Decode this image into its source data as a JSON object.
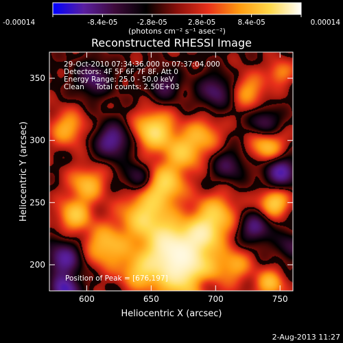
{
  "chart_data": {
    "type": "heatmap",
    "title": "Reconstructed RHESSI Image",
    "xlabel": "Heliocentric X (arcsec)",
    "ylabel": "Heliocentric Y (arcsec)",
    "xlim": [
      571,
      760
    ],
    "ylim": [
      179,
      371
    ],
    "x_ticks": [
      600,
      650,
      700,
      750
    ],
    "y_ticks": [
      200,
      250,
      300,
      350
    ],
    "colorbar": {
      "min": -0.00014,
      "max": 0.00014,
      "ticks": [
        "-0.00014",
        "-8.4e-05",
        "-2.8e-05",
        "2.8e-05",
        "8.4e-05",
        "0.00014"
      ],
      "label": "(photons cm⁻² s⁻¹ asec⁻²)",
      "colors": [
        "#0000ff",
        "#5a1fa0",
        "#3d0a3a",
        "#000000",
        "#8a0f0a",
        "#e8301a",
        "#ff9a10",
        "#ffd84a",
        "#ffffff"
      ]
    },
    "annotations": [
      "29-Oct-2010 07:34:36.000 to 07:37:04.000",
      "Detectors: 4F 5F 6F 7F 8F, Att 0",
      "Energy Range: 25.0 - 50.0 keV",
      "Clean     Total counts: 2.50E+03"
    ],
    "peak_label": "Position of Peak = [676,197]",
    "peak": [
      676,
      197
    ],
    "blobs": [
      {
        "x": 676,
        "y": 197,
        "w": 18,
        "v": 1.0
      },
      {
        "x": 665,
        "y": 215,
        "w": 14,
        "v": 0.75
      },
      {
        "x": 645,
        "y": 240,
        "w": 13,
        "v": 0.7
      },
      {
        "x": 660,
        "y": 265,
        "w": 11,
        "v": 0.7
      },
      {
        "x": 675,
        "y": 290,
        "w": 10,
        "v": 0.55
      },
      {
        "x": 652,
        "y": 308,
        "w": 11,
        "v": 0.8
      },
      {
        "x": 600,
        "y": 265,
        "w": 10,
        "v": 0.55
      },
      {
        "x": 590,
        "y": 240,
        "w": 9,
        "v": 0.6
      },
      {
        "x": 615,
        "y": 215,
        "w": 12,
        "v": 0.6
      },
      {
        "x": 640,
        "y": 195,
        "w": 10,
        "v": 0.5
      },
      {
        "x": 700,
        "y": 240,
        "w": 12,
        "v": 0.6
      },
      {
        "x": 690,
        "y": 225,
        "w": 9,
        "v": 0.55
      },
      {
        "x": 740,
        "y": 295,
        "w": 9,
        "v": 0.6
      },
      {
        "x": 745,
        "y": 250,
        "w": 8,
        "v": 0.7
      },
      {
        "x": 690,
        "y": 305,
        "w": 10,
        "v": 0.45
      },
      {
        "x": 725,
        "y": 340,
        "w": 10,
        "v": 0.45
      },
      {
        "x": 585,
        "y": 310,
        "w": 10,
        "v": 0.5
      },
      {
        "x": 715,
        "y": 200,
        "w": 9,
        "v": 0.4
      },
      {
        "x": 742,
        "y": 185,
        "w": 8,
        "v": 0.55
      },
      {
        "x": 750,
        "y": 355,
        "w": 7,
        "v": 0.4
      },
      {
        "x": 582,
        "y": 205,
        "w": 10,
        "v": -0.7
      },
      {
        "x": 620,
        "y": 300,
        "w": 10,
        "v": -0.7
      },
      {
        "x": 605,
        "y": 350,
        "w": 10,
        "v": -0.55
      },
      {
        "x": 640,
        "y": 270,
        "w": 8,
        "v": -0.5
      },
      {
        "x": 700,
        "y": 340,
        "w": 10,
        "v": -0.55
      },
      {
        "x": 710,
        "y": 280,
        "w": 9,
        "v": -0.45
      },
      {
        "x": 730,
        "y": 230,
        "w": 9,
        "v": -0.6
      },
      {
        "x": 750,
        "y": 275,
        "w": 9,
        "v": -0.75
      },
      {
        "x": 758,
        "y": 215,
        "w": 8,
        "v": -0.4
      },
      {
        "x": 690,
        "y": 185,
        "w": 7,
        "v": -0.35
      },
      {
        "x": 660,
        "y": 345,
        "w": 9,
        "v": -0.45
      },
      {
        "x": 583,
        "y": 180,
        "w": 8,
        "v": -0.8
      },
      {
        "x": 738,
        "y": 315,
        "w": 8,
        "v": -0.5
      }
    ]
  },
  "footer": {
    "date": "2-Aug-2013 11:27"
  }
}
